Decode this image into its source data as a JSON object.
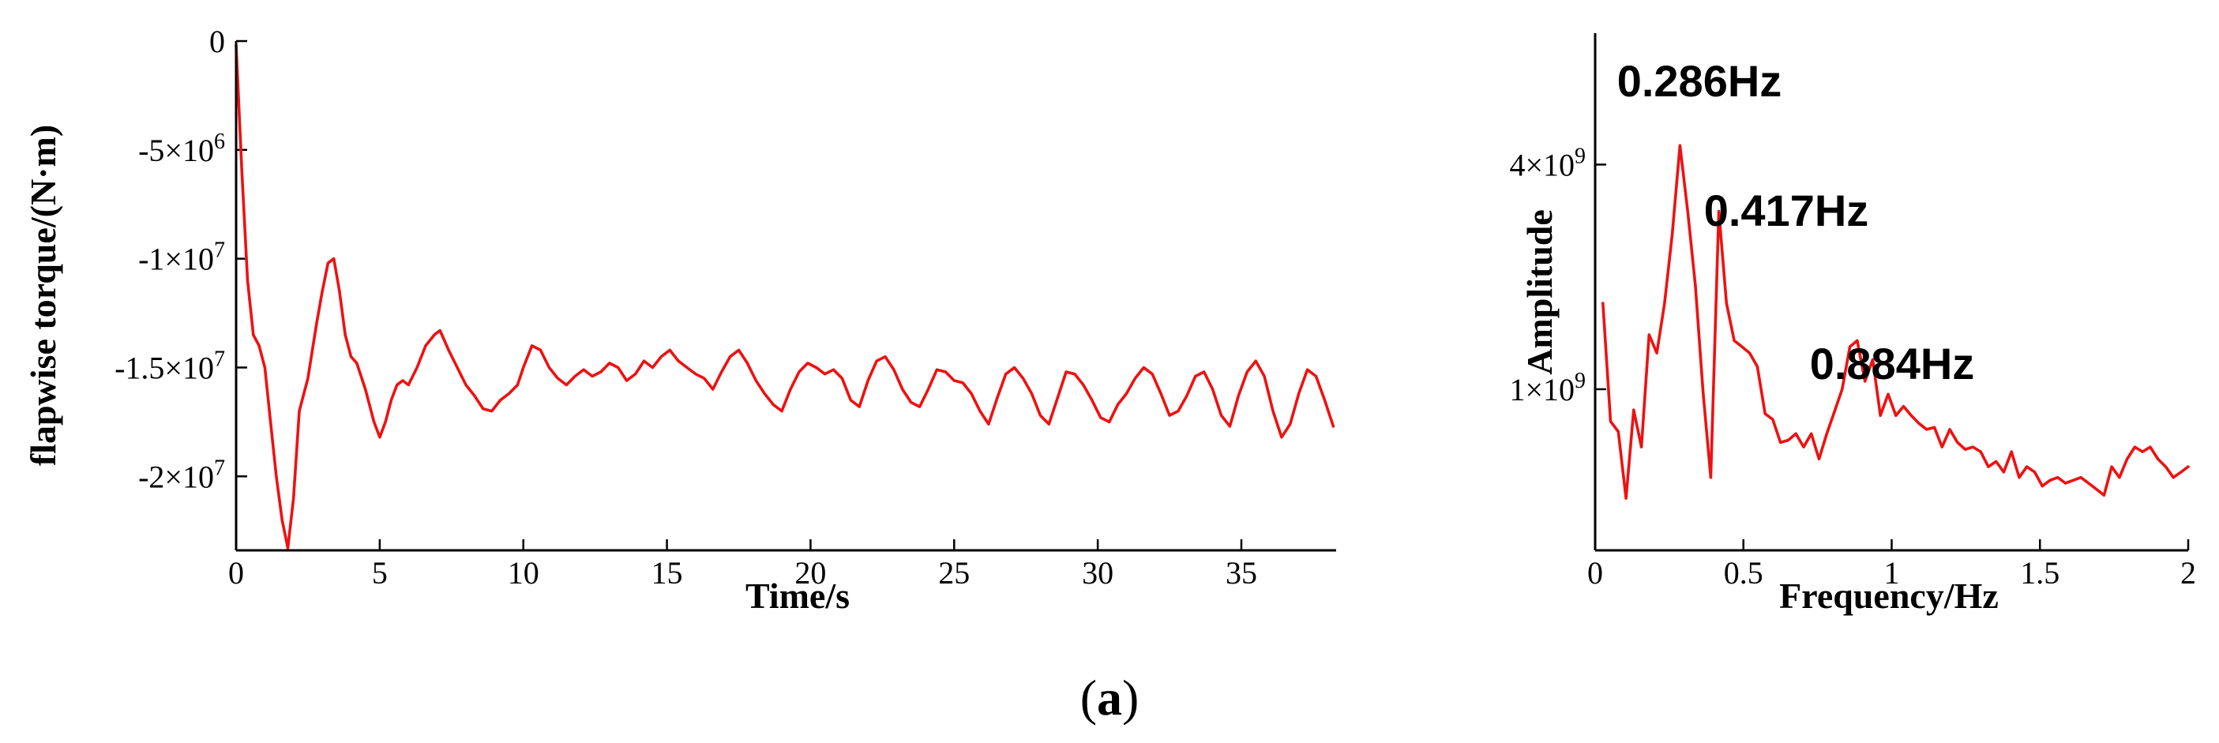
{
  "caption": {
    "open": "(",
    "letter": "a",
    "close": ")"
  },
  "chart_data": [
    {
      "type": "line",
      "xlabel": "Time/s",
      "ylabel": "flapwise torque/(N·m)",
      "xlim": [
        0,
        38.3
      ],
      "ylim": [
        -23400000,
        0
      ],
      "xticks": [
        0,
        5,
        10,
        15,
        20,
        25,
        30,
        35
      ],
      "xtick_labels": [
        "0",
        "5",
        "10",
        "15",
        "20",
        "25",
        "30",
        "35"
      ],
      "yticks": [
        0,
        -5000000,
        -10000000,
        -15000000,
        -20000000
      ],
      "ytick_labels": [
        {
          "text": "0",
          "mant": "",
          "exp": ""
        },
        {
          "text": "-5×10",
          "mant": "-5×10",
          "exp": "6"
        },
        {
          "text": "-1×10",
          "mant": "-1×10",
          "exp": "7"
        },
        {
          "text": "-1.5×10",
          "mant": "-1.5×10",
          "exp": "7"
        },
        {
          "text": "-2×10",
          "mant": "-2×10",
          "exp": "7"
        }
      ],
      "color": "#ee1111",
      "x": [
        0.0,
        0.2,
        0.4,
        0.6,
        0.8,
        1.0,
        1.2,
        1.4,
        1.6,
        1.8,
        2.0,
        2.2,
        2.5,
        2.8,
        3.0,
        3.2,
        3.4,
        3.6,
        3.8,
        4.0,
        4.2,
        4.5,
        4.8,
        5.0,
        5.2,
        5.4,
        5.6,
        5.8,
        6.0,
        6.3,
        6.6,
        6.9,
        7.1,
        7.4,
        7.7,
        8.0,
        8.3,
        8.6,
        8.9,
        9.2,
        9.5,
        9.8,
        10.0,
        10.3,
        10.6,
        10.9,
        11.2,
        11.5,
        11.8,
        12.1,
        12.4,
        12.7,
        13.0,
        13.3,
        13.6,
        13.9,
        14.2,
        14.5,
        14.8,
        15.1,
        15.4,
        15.7,
        16.0,
        16.3,
        16.6,
        16.9,
        17.2,
        17.5,
        17.8,
        18.1,
        18.4,
        18.7,
        19.0,
        19.3,
        19.6,
        19.9,
        20.2,
        20.5,
        20.8,
        21.1,
        21.4,
        21.7,
        22.0,
        22.3,
        22.6,
        22.9,
        23.2,
        23.5,
        23.8,
        24.1,
        24.4,
        24.7,
        25.0,
        25.3,
        25.6,
        25.9,
        26.2,
        26.5,
        26.8,
        27.1,
        27.4,
        27.7,
        28.0,
        28.3,
        28.6,
        28.9,
        29.2,
        29.5,
        29.8,
        30.1,
        30.4,
        30.7,
        31.0,
        31.3,
        31.6,
        31.9,
        32.2,
        32.5,
        32.8,
        33.1,
        33.4,
        33.7,
        34.0,
        34.3,
        34.6,
        34.9,
        35.2,
        35.5,
        35.8,
        36.1,
        36.4,
        36.7,
        37.0,
        37.3,
        37.6,
        37.9,
        38.2
      ],
      "y": [
        -200000,
        -6000000,
        -11000000,
        -13500000,
        -14000000,
        -15000000,
        -17500000,
        -20000000,
        -22000000,
        -23300000,
        -21000000,
        -17000000,
        -15500000,
        -13000000,
        -11500000,
        -10200000,
        -10000000,
        -11500000,
        -13500000,
        -14500000,
        -14800000,
        -16000000,
        -17500000,
        -18200000,
        -17500000,
        -16500000,
        -15800000,
        -15600000,
        -15800000,
        -15000000,
        -14000000,
        -13500000,
        -13300000,
        -14200000,
        -15000000,
        -15800000,
        -16300000,
        -16900000,
        -17000000,
        -16500000,
        -16200000,
        -15800000,
        -15000000,
        -14000000,
        -14200000,
        -15000000,
        -15500000,
        -15800000,
        -15400000,
        -15100000,
        -15400000,
        -15200000,
        -14800000,
        -15000000,
        -15600000,
        -15300000,
        -14700000,
        -15000000,
        -14500000,
        -14200000,
        -14700000,
        -15000000,
        -15300000,
        -15500000,
        -16000000,
        -15200000,
        -14500000,
        -14200000,
        -14800000,
        -15600000,
        -16200000,
        -16700000,
        -17000000,
        -16000000,
        -15200000,
        -14800000,
        -15000000,
        -15300000,
        -15100000,
        -15500000,
        -16500000,
        -16800000,
        -15600000,
        -14700000,
        -14500000,
        -15100000,
        -16000000,
        -16600000,
        -16800000,
        -16000000,
        -15100000,
        -15200000,
        -15600000,
        -15700000,
        -16200000,
        -17000000,
        -17600000,
        -16400000,
        -15300000,
        -15000000,
        -15500000,
        -16200000,
        -17200000,
        -17600000,
        -16400000,
        -15200000,
        -15300000,
        -15800000,
        -16500000,
        -17300000,
        -17500000,
        -16700000,
        -16200000,
        -15500000,
        -15000000,
        -15300000,
        -16200000,
        -17200000,
        -17000000,
        -16300000,
        -15400000,
        -15200000,
        -16000000,
        -17200000,
        -17700000,
        -16300000,
        -15200000,
        -14700000,
        -15400000,
        -17000000,
        -18200000,
        -17600000,
        -16200000,
        -15100000,
        -15400000,
        -16500000,
        -17700000
      ]
    },
    {
      "type": "line",
      "xlabel": "Frequency/Hz",
      "ylabel": "Amplitude",
      "xlim": [
        0,
        2
      ],
      "ylim_log": [
        370000000,
        9000000000
      ],
      "log_y": true,
      "xticks": [
        0,
        0.5,
        1,
        1.5,
        2
      ],
      "xtick_labels": [
        "0",
        "0.5",
        "1",
        "1.5",
        "2"
      ],
      "yticks": [
        1000000000,
        4000000000
      ],
      "ytick_labels": [
        {
          "text": "1×10",
          "mant": "1×10",
          "exp": "9"
        },
        {
          "text": "4×10",
          "mant": "4×10",
          "exp": "9"
        }
      ],
      "color": "#ee1111",
      "x": [
        0.026,
        0.052,
        0.078,
        0.104,
        0.13,
        0.156,
        0.182,
        0.208,
        0.234,
        0.26,
        0.286,
        0.312,
        0.338,
        0.364,
        0.39,
        0.417,
        0.443,
        0.469,
        0.495,
        0.521,
        0.547,
        0.573,
        0.599,
        0.625,
        0.651,
        0.677,
        0.703,
        0.729,
        0.755,
        0.781,
        0.807,
        0.833,
        0.859,
        0.884,
        0.91,
        0.936,
        0.962,
        0.988,
        1.014,
        1.04,
        1.066,
        1.092,
        1.118,
        1.144,
        1.17,
        1.196,
        1.222,
        1.248,
        1.274,
        1.3,
        1.326,
        1.352,
        1.378,
        1.404,
        1.43,
        1.456,
        1.482,
        1.508,
        1.534,
        1.56,
        1.586,
        1.612,
        1.638,
        1.664,
        1.69,
        1.716,
        1.742,
        1.768,
        1.794,
        1.82,
        1.846,
        1.872,
        1.898,
        1.924,
        1.95,
        1.976,
        2.0
      ],
      "y": [
        1700000000,
        820000000,
        770000000,
        510000000,
        880000000,
        700000000,
        1400000000,
        1250000000,
        1700000000,
        2600000000,
        4500000000,
        3000000000,
        1900000000,
        980000000,
        580000000,
        3000000000,
        1700000000,
        1350000000,
        1300000000,
        1250000000,
        1150000000,
        860000000,
        830000000,
        720000000,
        730000000,
        760000000,
        700000000,
        760000000,
        650000000,
        760000000,
        870000000,
        1000000000,
        1300000000,
        1350000000,
        1050000000,
        1200000000,
        850000000,
        970000000,
        850000000,
        900000000,
        850000000,
        810000000,
        780000000,
        790000000,
        700000000,
        780000000,
        720000000,
        690000000,
        700000000,
        680000000,
        620000000,
        640000000,
        600000000,
        680000000,
        580000000,
        620000000,
        600000000,
        550000000,
        570000000,
        580000000,
        560000000,
        570000000,
        580000000,
        560000000,
        540000000,
        520000000,
        620000000,
        580000000,
        650000000,
        700000000,
        680000000,
        700000000,
        650000000,
        620000000,
        580000000,
        600000000,
        620000000
      ]
    }
  ],
  "annotations": [
    "0.286Hz",
    "0.417Hz",
    "0.884Hz"
  ]
}
